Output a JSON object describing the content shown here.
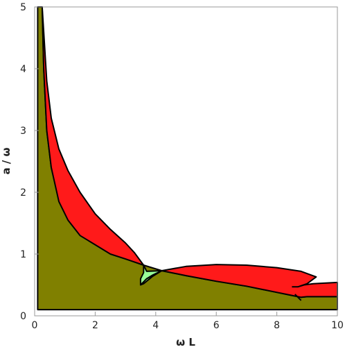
{
  "chart_data": {
    "type": "area",
    "title": "",
    "xlabel": "ω L",
    "ylabel": "a / ω",
    "xlim": [
      0,
      10
    ],
    "ylim": [
      0,
      5
    ],
    "xticks": [
      "0",
      "2",
      "4",
      "6",
      "8",
      "10"
    ],
    "yticks": [
      "0",
      "1",
      "2",
      "3",
      "4",
      "5"
    ],
    "grid": false,
    "legend": "none",
    "colors": {
      "olive": "#808000",
      "red": "#ff1a1a",
      "green": "#99ff99",
      "outline": "#000000"
    },
    "regions": [
      {
        "color": "olive",
        "boundary": [
          [
            0.1,
            0.1
          ],
          [
            0.1,
            5.0
          ],
          [
            0.25,
            5.0
          ],
          [
            0.3,
            4.0
          ],
          [
            0.4,
            3.0
          ],
          [
            0.55,
            2.4
          ],
          [
            0.75,
            2.0
          ],
          [
            1.0,
            1.7
          ],
          [
            1.3,
            1.45
          ],
          [
            1.7,
            1.28
          ],
          [
            2.2,
            1.12
          ],
          [
            2.7,
            0.99
          ],
          [
            3.2,
            0.89
          ],
          [
            3.6,
            0.82
          ],
          [
            4.2,
            0.73
          ],
          [
            5.0,
            0.65
          ],
          [
            6.0,
            0.56
          ],
          [
            7.0,
            0.48
          ],
          [
            8.0,
            0.38
          ],
          [
            8.5,
            0.33
          ],
          [
            8.8,
            0.3
          ],
          [
            9.0,
            0.31
          ],
          [
            10.0,
            0.31
          ],
          [
            10.0,
            0.1
          ]
        ]
      },
      {
        "color": "red",
        "boundary": [
          [
            0.25,
            5.0
          ],
          [
            0.4,
            3.8
          ],
          [
            0.55,
            3.2
          ],
          [
            0.8,
            2.7
          ],
          [
            1.1,
            2.35
          ],
          [
            1.5,
            2.0
          ],
          [
            2.0,
            1.65
          ],
          [
            2.5,
            1.4
          ],
          [
            3.0,
            1.18
          ],
          [
            3.3,
            1.02
          ],
          [
            3.6,
            0.82
          ],
          [
            3.0,
            0.92
          ],
          [
            2.5,
            1.0
          ],
          [
            2.0,
            1.15
          ],
          [
            1.5,
            1.3
          ],
          [
            1.1,
            1.55
          ],
          [
            0.8,
            1.85
          ],
          [
            0.55,
            2.4
          ],
          [
            0.4,
            3.0
          ],
          [
            0.3,
            4.0
          ]
        ]
      },
      {
        "color": "red",
        "boundary": [
          [
            4.2,
            0.73
          ],
          [
            5.0,
            0.8
          ],
          [
            6.0,
            0.83
          ],
          [
            7.0,
            0.82
          ],
          [
            8.0,
            0.78
          ],
          [
            8.8,
            0.72
          ],
          [
            9.3,
            0.63
          ],
          [
            9.0,
            0.52
          ],
          [
            8.7,
            0.47
          ],
          [
            8.9,
            0.5
          ],
          [
            9.2,
            0.52
          ],
          [
            10.0,
            0.54
          ],
          [
            10.0,
            0.31
          ],
          [
            9.0,
            0.31
          ],
          [
            8.8,
            0.3
          ],
          [
            8.5,
            0.33
          ],
          [
            8.0,
            0.38
          ],
          [
            7.0,
            0.48
          ],
          [
            6.0,
            0.56
          ],
          [
            5.0,
            0.65
          ]
        ]
      },
      {
        "color": "green",
        "boundary": [
          [
            3.6,
            0.82
          ],
          [
            3.7,
            0.72
          ],
          [
            4.2,
            0.73
          ],
          [
            3.9,
            0.64
          ],
          [
            3.6,
            0.52
          ],
          [
            3.5,
            0.5
          ],
          [
            3.5,
            0.6
          ],
          [
            3.6,
            0.7
          ]
        ]
      }
    ],
    "curves": [
      {
        "points": [
          [
            3.5,
            0.5
          ],
          [
            3.7,
            0.6
          ],
          [
            3.9,
            0.66
          ],
          [
            4.2,
            0.73
          ]
        ]
      },
      {
        "points": [
          [
            8.5,
            0.47
          ],
          [
            8.7,
            0.47
          ]
        ]
      },
      {
        "points": [
          [
            8.6,
            0.35
          ],
          [
            8.8,
            0.25
          ]
        ]
      }
    ]
  }
}
